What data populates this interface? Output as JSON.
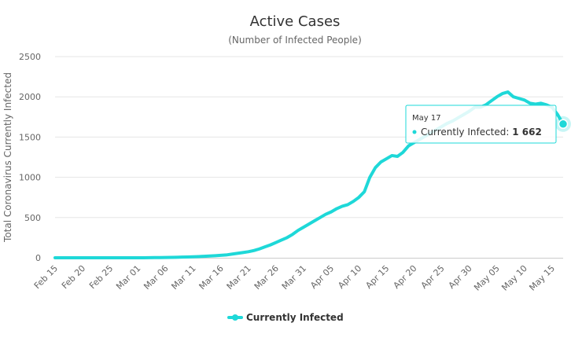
{
  "colors": {
    "series": "#1ed8d8",
    "grid": "#e6e6e6",
    "axis_text": "#666666",
    "title_text": "#333333"
  },
  "chart_data": {
    "type": "line",
    "title": "Active Cases",
    "subtitle": "(Number of Infected People)",
    "ylabel": "Total Coronavirus Currently Infected",
    "xlabel": "",
    "ylim": [
      0,
      2500
    ],
    "yticks": [
      "0",
      "500",
      "1000",
      "1500",
      "2000",
      "2500"
    ],
    "ytick_values": [
      0,
      500,
      1000,
      1500,
      2000,
      2500
    ],
    "xticks": [
      "Feb 15",
      "Feb 20",
      "Feb 25",
      "Mar 01",
      "Mar 06",
      "Mar 11",
      "Mar 16",
      "Mar 21",
      "Mar 26",
      "Mar 31",
      "Apr 05",
      "Apr 10",
      "Apr 15",
      "Apr 20",
      "Apr 25",
      "Apr 30",
      "May 05",
      "May 10",
      "May 15"
    ],
    "grid": true,
    "legend_position": "bottom-center",
    "series": [
      {
        "name": "Currently Infected",
        "x": [
          "Feb 15",
          "Feb 16",
          "Feb 17",
          "Feb 18",
          "Feb 19",
          "Feb 20",
          "Feb 21",
          "Feb 22",
          "Feb 23",
          "Feb 24",
          "Feb 25",
          "Feb 26",
          "Feb 27",
          "Feb 28",
          "Feb 29",
          "Mar 01",
          "Mar 02",
          "Mar 03",
          "Mar 04",
          "Mar 05",
          "Mar 06",
          "Mar 07",
          "Mar 08",
          "Mar 09",
          "Mar 10",
          "Mar 11",
          "Mar 12",
          "Mar 13",
          "Mar 14",
          "Mar 15",
          "Mar 16",
          "Mar 17",
          "Mar 18",
          "Mar 19",
          "Mar 20",
          "Mar 21",
          "Mar 22",
          "Mar 23",
          "Mar 24",
          "Mar 25",
          "Mar 26",
          "Mar 27",
          "Mar 28",
          "Mar 29",
          "Mar 30",
          "Mar 31",
          "Apr 01",
          "Apr 02",
          "Apr 03",
          "Apr 04",
          "Apr 05",
          "Apr 06",
          "Apr 07",
          "Apr 08",
          "Apr 09",
          "Apr 10",
          "Apr 11",
          "Apr 12",
          "Apr 13",
          "Apr 14",
          "Apr 15",
          "Apr 16",
          "Apr 17",
          "Apr 18",
          "Apr 19",
          "Apr 20",
          "Apr 21",
          "Apr 22",
          "Apr 23",
          "Apr 24",
          "Apr 25",
          "Apr 26",
          "Apr 27",
          "Apr 28",
          "Apr 29",
          "Apr 30",
          "May 01",
          "May 02",
          "May 03",
          "May 04",
          "May 05",
          "May 06",
          "May 07",
          "May 08",
          "May 09",
          "May 10",
          "May 11",
          "May 12",
          "May 13",
          "May 14",
          "May 15",
          "May 16",
          "May 17"
        ],
        "values": [
          0,
          0,
          0,
          0,
          0,
          0,
          0,
          0,
          0,
          0,
          0,
          0,
          0,
          0,
          0,
          0,
          0,
          1,
          2,
          3,
          4,
          5,
          6,
          8,
          10,
          12,
          15,
          18,
          22,
          26,
          30,
          35,
          45,
          55,
          65,
          75,
          90,
          110,
          135,
          160,
          190,
          220,
          250,
          290,
          340,
          380,
          420,
          460,
          500,
          540,
          570,
          610,
          640,
          660,
          700,
          750,
          820,
          1000,
          1120,
          1190,
          1230,
          1270,
          1260,
          1310,
          1390,
          1430,
          1470,
          1510,
          1550,
          1590,
          1630,
          1670,
          1700,
          1740,
          1780,
          1820,
          1870,
          1870,
          1900,
          1950,
          2000,
          2040,
          2060,
          2000,
          1980,
          1960,
          1920,
          1910,
          1920,
          1900,
          1870,
          1780,
          1662
        ]
      }
    ]
  },
  "legend": {
    "label": "Currently Infected"
  },
  "tooltip": {
    "date": "May 17",
    "label": "Currently Infected: ",
    "value": "1 662"
  }
}
